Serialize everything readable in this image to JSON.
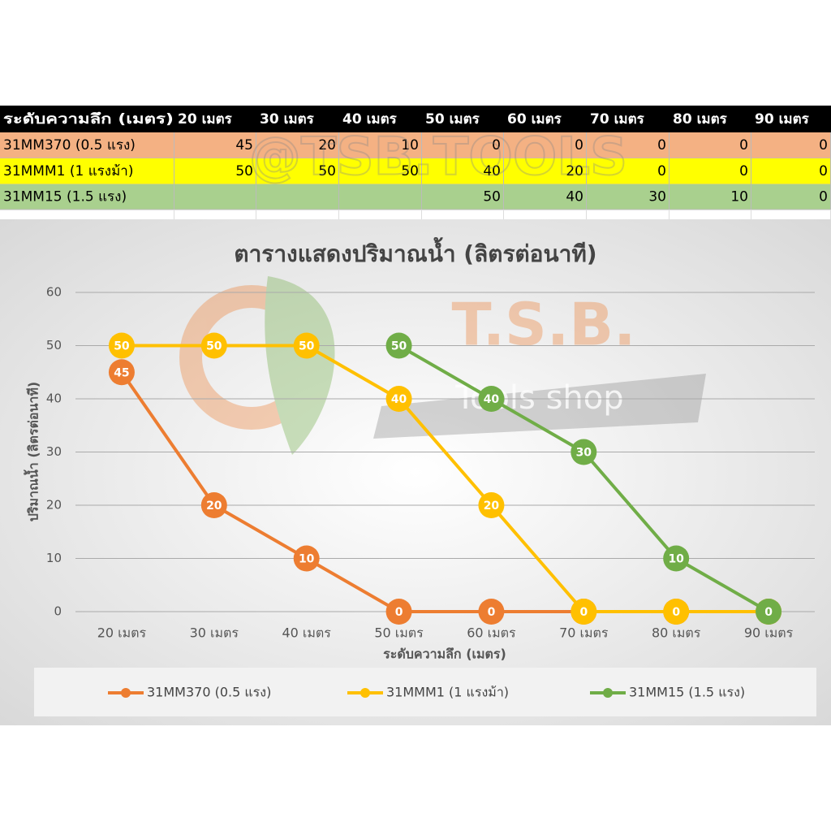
{
  "table_watermark": "@TSB.TOOLS",
  "table": {
    "header": [
      "ระดับความลึก (เมตร)",
      "20 เมตร",
      "30 เมตร",
      "40 เมตร",
      "50 เมตร",
      "60 เมตร",
      "70 เมตร",
      "80 เมตร",
      "90 เมตร"
    ],
    "rows": [
      [
        "31MM370 (0.5 แรง)",
        45,
        20,
        10,
        0,
        0,
        0,
        0,
        0
      ],
      [
        "31MMM1 (1 แรงม้า)",
        50,
        50,
        50,
        40,
        20,
        0,
        0,
        0
      ],
      [
        "31MM15 (1.5 แรง)",
        null,
        null,
        null,
        50,
        40,
        30,
        10,
        0
      ]
    ],
    "row_colors": [
      "#f4b183",
      "#ffff00",
      "#a9d08e"
    ]
  },
  "logo": {
    "title": "T.S.B.",
    "subtitle": "Tools shop"
  },
  "chart_data": {
    "type": "line",
    "title": "ตารางแสดงปริมาณน้ำ (ลิตรต่อนาที)",
    "x_label": "ระดับความลึก (เมตร)",
    "y_label": "ปริมาณน้ำ (ลิตรต่อนาที)",
    "categories": [
      "20 เมตร",
      "30 เมตร",
      "40 เมตร",
      "50 เมตร",
      "60 เมตร",
      "70 เมตร",
      "80 เมตร",
      "90 เมตร"
    ],
    "ylim": [
      0,
      60
    ],
    "yticks": [
      0,
      10,
      20,
      30,
      40,
      50,
      60
    ],
    "grid": true,
    "legend": "bottom",
    "series": [
      {
        "name": "31MM370 (0.5 แรง)",
        "color": "#ed7d31",
        "values": [
          45,
          20,
          10,
          0,
          0,
          0,
          0,
          0
        ]
      },
      {
        "name": "31MMM1 (1 แรงม้า)",
        "color": "#ffc000",
        "values": [
          50,
          50,
          50,
          40,
          20,
          0,
          0,
          0
        ]
      },
      {
        "name": "31MM15 (1.5 แรง)",
        "color": "#70ad47",
        "values": [
          null,
          null,
          null,
          50,
          40,
          30,
          10,
          0
        ]
      }
    ]
  }
}
